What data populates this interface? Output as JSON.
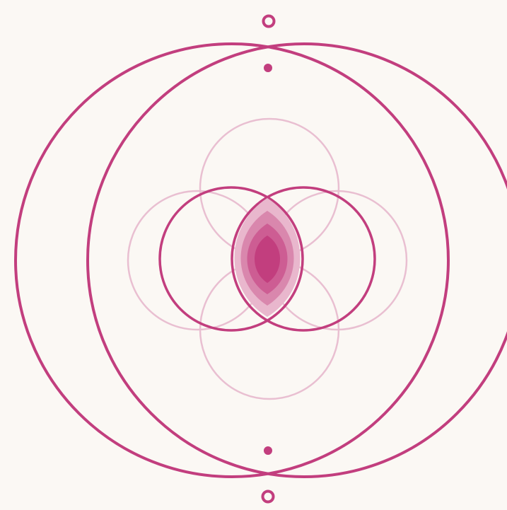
{
  "diagram": {
    "background": "#fbf8f4",
    "colors": {
      "primary": "#c23e7e",
      "light": "#e9bfd1",
      "mandorla_outer": "#e9b7cd",
      "mandorla_mid": "#d987ad",
      "mandorla_inner": "#cd5d93",
      "mandorla_core": "#c23e7e"
    },
    "elements": [
      "large-left-circle",
      "large-right-circle",
      "inner-bold-left-circle",
      "inner-bold-right-circle",
      "light-top-circle",
      "light-bottom-circle",
      "light-left-circle",
      "light-right-circle",
      "central-vesica-mandorla",
      "top-ring-marker",
      "top-dot-marker",
      "bottom-dot-marker",
      "bottom-ring-marker"
    ]
  }
}
